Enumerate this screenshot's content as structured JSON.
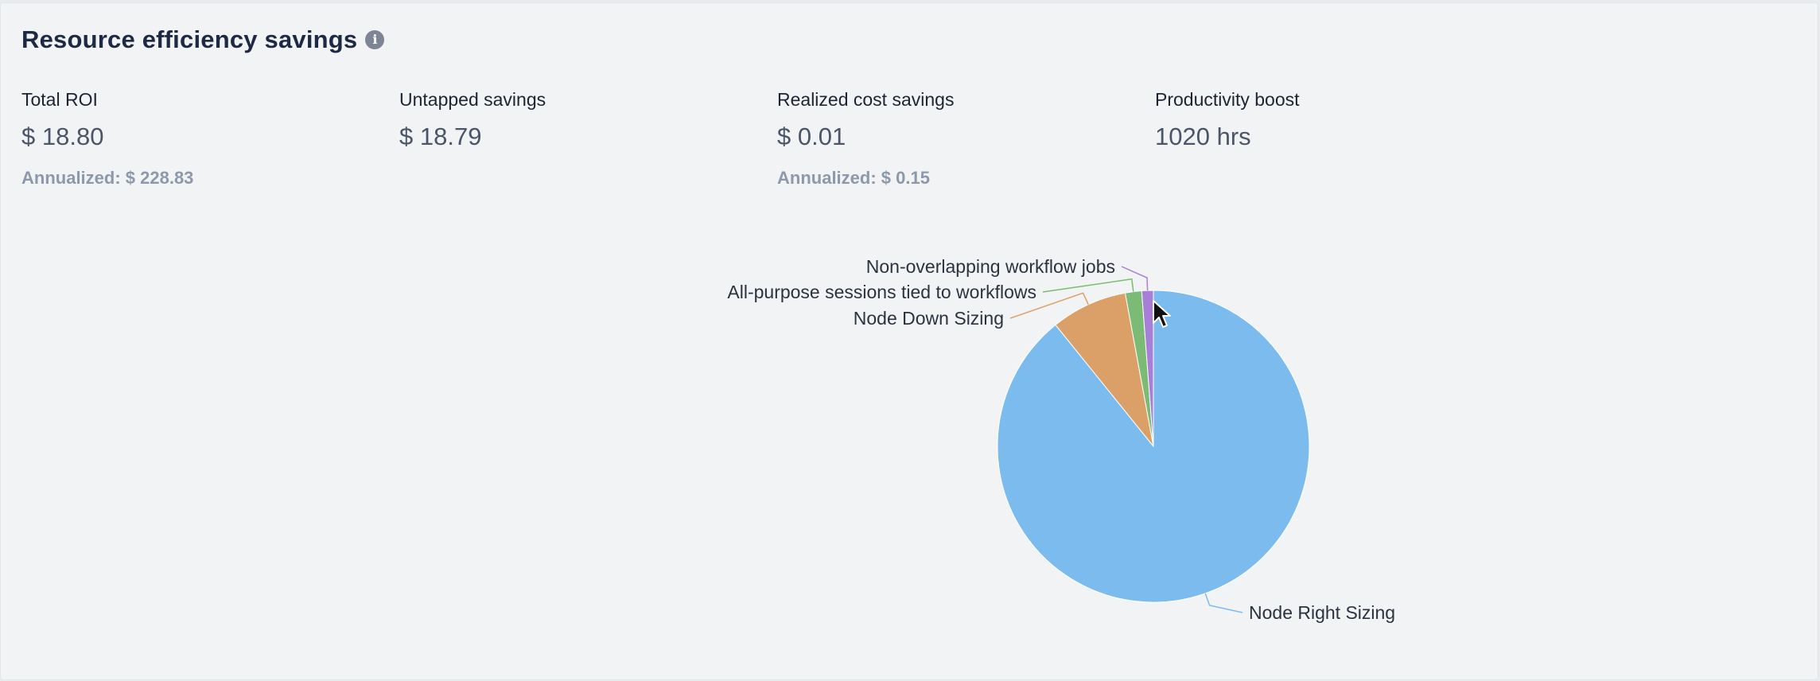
{
  "header": {
    "title": "Resource efficiency savings",
    "info_icon": "info-icon"
  },
  "metrics": [
    {
      "label": "Total ROI",
      "value": "$ 18.80",
      "annualized": "Annualized: $ 228.83"
    },
    {
      "label": "Untapped savings",
      "value": "$ 18.79",
      "annualized": ""
    },
    {
      "label": "Realized cost savings",
      "value": "$ 0.01",
      "annualized": "Annualized: $ 0.15"
    },
    {
      "label": "Productivity boost",
      "value": "1020 hrs",
      "annualized": ""
    }
  ],
  "chart_data": {
    "type": "pie",
    "title": "",
    "slices": [
      {
        "label": "Node Right Sizing",
        "value": 89.2,
        "color": "#7bbbee"
      },
      {
        "label": "Node Down Sizing",
        "value": 7.9,
        "color": "#dba068"
      },
      {
        "label": "All-purpose sessions tied to workflows",
        "value": 1.7,
        "color": "#7cbb76"
      },
      {
        "label": "Non-overlapping workflow jobs",
        "value": 1.2,
        "color": "#a77fd6"
      }
    ],
    "legend": "none",
    "labels": "outside-with-leader-lines"
  }
}
